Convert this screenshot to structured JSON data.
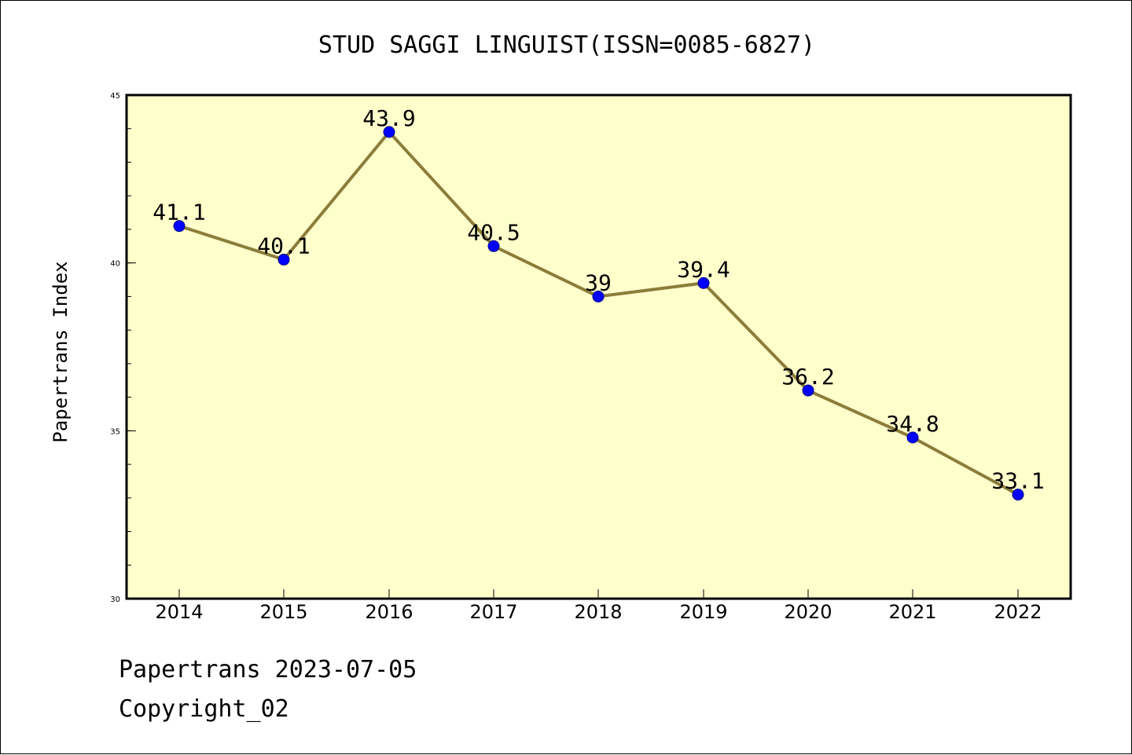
{
  "chart_data": {
    "type": "line",
    "title": "STUD SAGGI LINGUIST(ISSN=0085-6827)",
    "xlabel": "",
    "ylabel": "Papertrans Index",
    "categories": [
      "2014",
      "2015",
      "2016",
      "2017",
      "2018",
      "2019",
      "2020",
      "2021",
      "2022"
    ],
    "series": [
      {
        "values": [
          41.1,
          40.1,
          43.9,
          40.5,
          39,
          39.4,
          36.2,
          34.8,
          33.1
        ],
        "labels": [
          "41.1",
          "40.1",
          "43.9",
          "40.5",
          "39",
          "39.4",
          "36.2",
          "34.8",
          "33.1"
        ]
      }
    ],
    "ylim": [
      30,
      45
    ],
    "y_major_ticks": [
      "30",
      "35",
      "40",
      "45"
    ],
    "y_minor_step": 1,
    "grid": false,
    "colors": {
      "plot_background": "#FFFFCC",
      "line": "#8B7D3A",
      "marker": "#0000FF"
    }
  },
  "footer": {
    "line1": "Papertrans 2023-07-05",
    "line2": "Copyright_02"
  }
}
